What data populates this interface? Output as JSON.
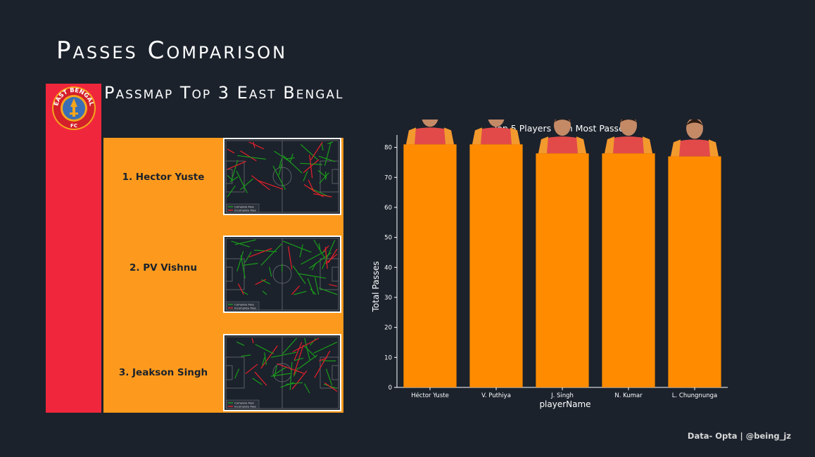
{
  "page": {
    "title": "Passes Comparison",
    "subtitle": "Passmap Top 3 East Bengal",
    "credit": "Data- Opta | @being_jz"
  },
  "logo": {
    "text_top": "EAST BENGAL",
    "text_bottom": "FC"
  },
  "passmaps": [
    {
      "label": "1. Hector Yuste",
      "legend_complete": "Complete Pass",
      "legend_incomplete": "Incomplete Pass"
    },
    {
      "label": "2. PV Vishnu",
      "legend_complete": "Complete Pass",
      "legend_incomplete": "Incomplete Pass"
    },
    {
      "label": "3. Jeakson Singh",
      "legend_complete": "Complete Pass",
      "legend_incomplete": "Incomplete Pass"
    }
  ],
  "colors": {
    "background": "#1b222c",
    "red_panel": "#f0273c",
    "orange_panel": "#fd9a1d",
    "bar": "#ff8c00",
    "complete_pass": "#1a9b1a",
    "incomplete_pass": "#e8202a"
  },
  "chart_data": {
    "type": "bar",
    "title": "Top 5 Players with Most Passes",
    "xlabel": "playerName",
    "ylabel": "Total Passes",
    "categories": [
      "Héctor Yuste",
      "V. Puthiya",
      "J. Singh",
      "N. Kumar",
      "L. Chungnunga"
    ],
    "values": [
      81,
      81,
      78,
      78,
      77
    ],
    "yticks": [
      0,
      10,
      20,
      30,
      40,
      50,
      60,
      70,
      80
    ],
    "ylim": [
      0,
      86
    ],
    "grid": false,
    "legend": "none"
  }
}
